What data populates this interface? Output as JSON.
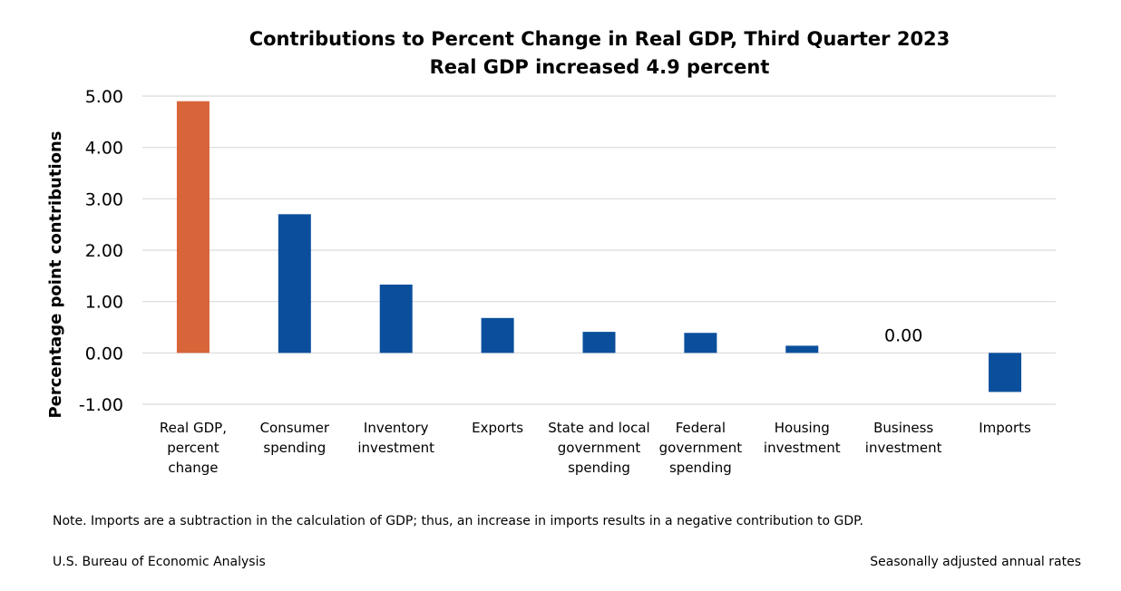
{
  "chart_data": {
    "type": "bar",
    "title": "Contributions to Percent Change in Real GDP, Third Quarter 2023",
    "subtitle": "Real GDP increased 4.9 percent",
    "ylabel": "Percentage point contributions",
    "xlabel": "",
    "ylim": [
      -1.0,
      5.0
    ],
    "yticks": [
      "5.00",
      "4.00",
      "3.00",
      "2.00",
      "1.00",
      "0.00",
      "-1.00"
    ],
    "ytick_values": [
      5,
      4,
      3,
      2,
      1,
      0,
      -1
    ],
    "grid": true,
    "categories": [
      [
        "Real GDP,",
        "percent",
        "change"
      ],
      [
        "Consumer",
        "spending"
      ],
      [
        "Inventory",
        "investment"
      ],
      [
        "Exports"
      ],
      [
        "State and local",
        "government",
        "spending"
      ],
      [
        "Federal",
        "government",
        "spending"
      ],
      [
        "Housing",
        "investment"
      ],
      [
        "Business",
        "investment"
      ],
      [
        "Imports"
      ]
    ],
    "values": [
      4.9,
      2.7,
      1.33,
      0.68,
      0.41,
      0.39,
      0.14,
      0.0,
      -0.76
    ],
    "colors": [
      "#D8643A",
      "#0B4F9C",
      "#0B4F9C",
      "#0B4F9C",
      "#0B4F9C",
      "#0B4F9C",
      "#0B4F9C",
      "#0B4F9C",
      "#0B4F9C"
    ],
    "data_labels": [
      {
        "index": 7,
        "text": "0.00"
      }
    ]
  },
  "footer": {
    "note": "Note. Imports are a subtraction in the calculation of GDP; thus, an increase in imports results in a negative contribution to GDP.",
    "source": "U.S. Bureau of Economic Analysis",
    "rates": "Seasonally adjusted annual rates"
  }
}
